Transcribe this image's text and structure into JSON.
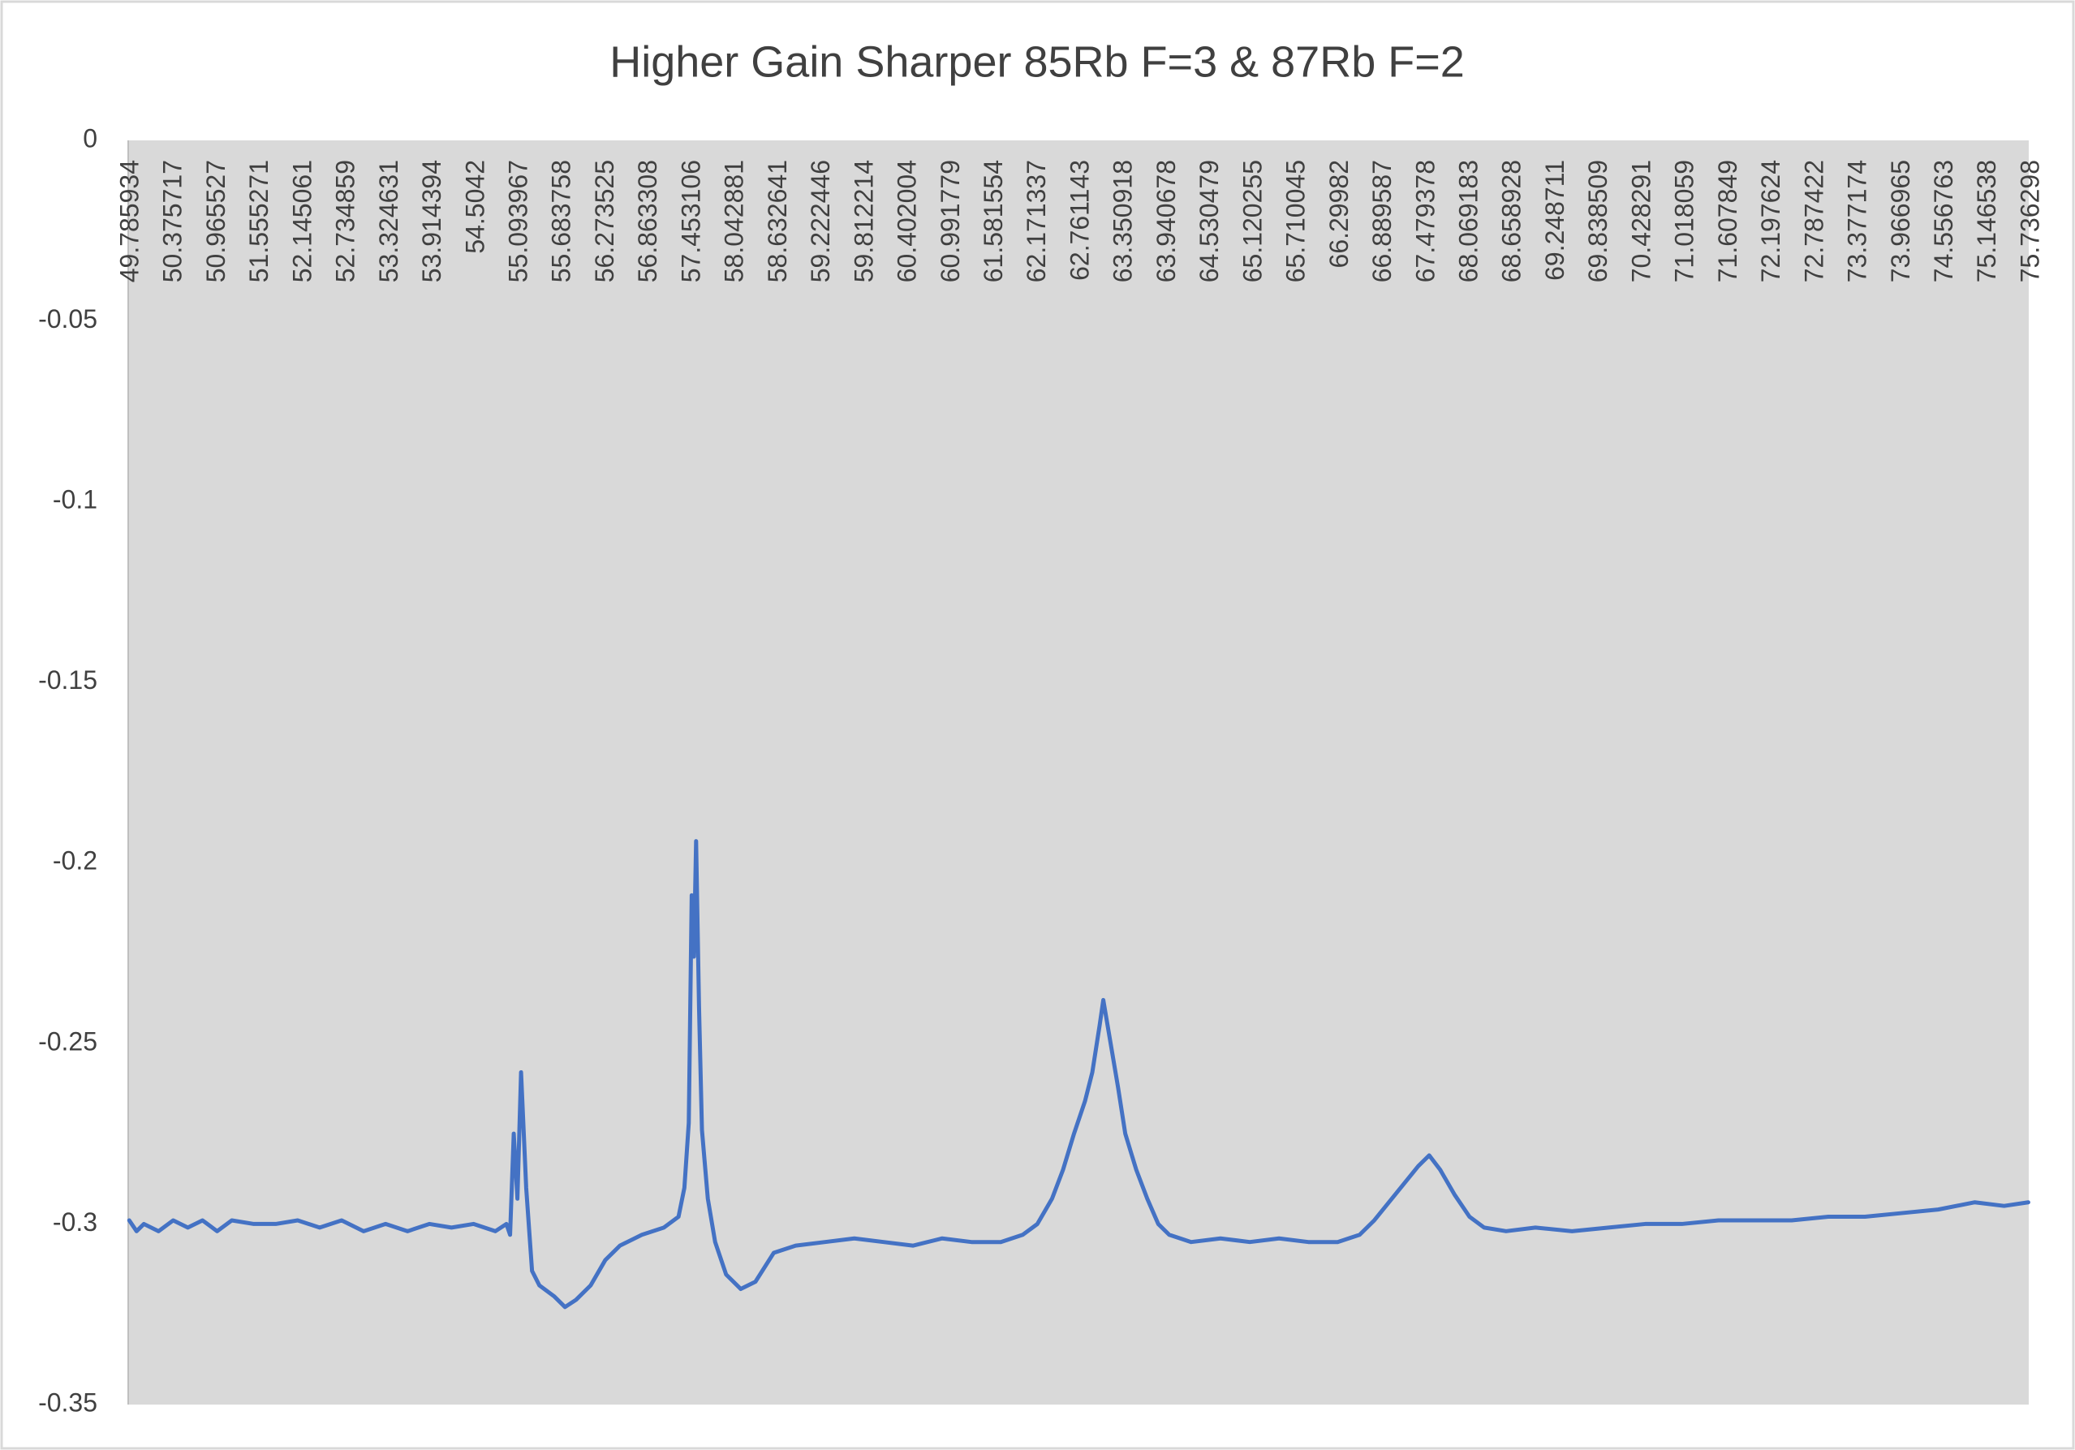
{
  "chart_data": {
    "type": "line",
    "title": "Higher Gain Sharper 85Rb F=3 & 87Rb F=2",
    "color": "#4472c4",
    "plot_background": "#d9d9d9",
    "grid": false,
    "xlim": [
      49.785934,
      75.736298
    ],
    "xticks": [
      49.785934,
      50.375717,
      50.965527,
      51.555271,
      52.145061,
      52.734859,
      53.324631,
      53.914394,
      54.5042,
      55.093967,
      55.683758,
      56.273525,
      56.863308,
      57.453106,
      58.042881,
      58.632641,
      59.222446,
      59.812214,
      60.402004,
      60.991779,
      61.581554,
      62.171337,
      62.761143,
      63.350918,
      63.940678,
      64.530479,
      65.120255,
      65.710045,
      66.29982,
      66.889587,
      67.479378,
      68.069183,
      68.658928,
      69.248711,
      69.838509,
      70.428291,
      71.018059,
      71.607849,
      72.197624,
      72.787422,
      73.377174,
      73.966965,
      74.556763,
      75.146538,
      75.736298
    ],
    "ylim": [
      -0.35,
      0
    ],
    "yticks": [
      0,
      -0.05,
      -0.1,
      -0.15,
      -0.2,
      -0.25,
      -0.3,
      -0.35
    ],
    "x": [
      49.8,
      49.9,
      50.0,
      50.2,
      50.4,
      50.6,
      50.8,
      51.0,
      51.2,
      51.5,
      51.8,
      52.1,
      52.4,
      52.7,
      53.0,
      53.3,
      53.6,
      53.9,
      54.2,
      54.5,
      54.8,
      54.95,
      55.0,
      55.05,
      55.1,
      55.15,
      55.22,
      55.3,
      55.4,
      55.6,
      55.75,
      55.9,
      56.1,
      56.3,
      56.5,
      56.8,
      57.1,
      57.3,
      57.38,
      57.44,
      57.48,
      57.51,
      57.54,
      57.58,
      57.62,
      57.7,
      57.8,
      57.95,
      58.15,
      58.35,
      58.6,
      58.9,
      59.3,
      59.7,
      60.1,
      60.5,
      60.9,
      61.3,
      61.7,
      62.0,
      62.2,
      62.4,
      62.55,
      62.7,
      62.85,
      62.95,
      63.05,
      63.1,
      63.2,
      63.3,
      63.4,
      63.55,
      63.7,
      63.85,
      64.0,
      64.3,
      64.7,
      65.1,
      65.5,
      65.9,
      66.3,
      66.6,
      66.8,
      67.0,
      67.2,
      67.4,
      67.55,
      67.7,
      67.9,
      68.1,
      68.3,
      68.6,
      69.0,
      69.5,
      70.0,
      70.5,
      71.0,
      71.5,
      72.0,
      72.5,
      73.0,
      73.5,
      74.0,
      74.5,
      75.0,
      75.4,
      75.73
    ],
    "values": [
      -0.299,
      -0.302,
      -0.3,
      -0.302,
      -0.299,
      -0.301,
      -0.299,
      -0.302,
      -0.299,
      -0.3,
      -0.3,
      -0.299,
      -0.301,
      -0.299,
      -0.302,
      -0.3,
      -0.302,
      -0.3,
      -0.301,
      -0.3,
      -0.302,
      -0.3,
      -0.303,
      -0.275,
      -0.293,
      -0.258,
      -0.29,
      -0.313,
      -0.317,
      -0.32,
      -0.323,
      -0.321,
      -0.317,
      -0.31,
      -0.306,
      -0.303,
      -0.301,
      -0.298,
      -0.29,
      -0.272,
      -0.209,
      -0.226,
      -0.194,
      -0.24,
      -0.274,
      -0.293,
      -0.305,
      -0.314,
      -0.318,
      -0.316,
      -0.308,
      -0.306,
      -0.305,
      -0.304,
      -0.305,
      -0.306,
      -0.304,
      -0.305,
      -0.305,
      -0.303,
      -0.3,
      -0.293,
      -0.285,
      -0.275,
      -0.266,
      -0.258,
      -0.245,
      -0.238,
      -0.25,
      -0.262,
      -0.275,
      -0.285,
      -0.293,
      -0.3,
      -0.303,
      -0.305,
      -0.304,
      -0.305,
      -0.304,
      -0.305,
      -0.305,
      -0.303,
      -0.299,
      -0.294,
      -0.289,
      -0.284,
      -0.281,
      -0.285,
      -0.292,
      -0.298,
      -0.301,
      -0.302,
      -0.301,
      -0.302,
      -0.301,
      -0.3,
      -0.3,
      -0.299,
      -0.299,
      -0.299,
      -0.298,
      -0.298,
      -0.297,
      -0.296,
      -0.294,
      -0.295,
      -0.294
    ]
  }
}
